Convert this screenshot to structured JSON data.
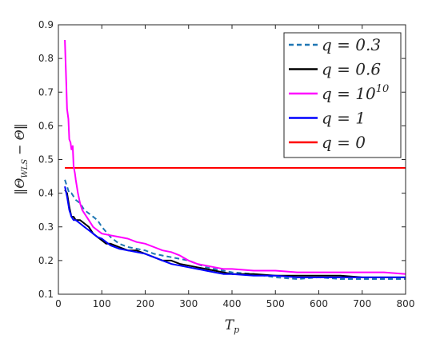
{
  "chart_data": {
    "type": "line",
    "title": "",
    "xlabel": "T_p",
    "ylabel": "||Θ_WLS − Θ||",
    "xlim": [
      0,
      800
    ],
    "ylim": [
      0.1,
      0.9
    ],
    "xticks": [
      "0",
      "100",
      "200",
      "300",
      "400",
      "500",
      "600",
      "700",
      "800"
    ],
    "yticks": [
      "0.1",
      "0.2",
      "0.3",
      "0.4",
      "0.5",
      "0.6",
      "0.7",
      "0.8",
      "0.9"
    ],
    "grid": false,
    "legend_position": "top-right",
    "series": [
      {
        "name": "q = 0.3",
        "color": "#1f77b4",
        "style": "dashed",
        "x": [
          15,
          20,
          25,
          30,
          40,
          50,
          60,
          70,
          80,
          90,
          100,
          120,
          140,
          160,
          180,
          200,
          220,
          240,
          260,
          280,
          300,
          320,
          340,
          360,
          380,
          400,
          450,
          500,
          550,
          600,
          650,
          700,
          750,
          800
        ],
        "y": [
          0.44,
          0.42,
          0.4,
          0.4,
          0.38,
          0.37,
          0.35,
          0.34,
          0.33,
          0.32,
          0.3,
          0.27,
          0.25,
          0.24,
          0.235,
          0.23,
          0.22,
          0.215,
          0.21,
          0.205,
          0.2,
          0.19,
          0.18,
          0.175,
          0.17,
          0.165,
          0.16,
          0.15,
          0.145,
          0.15,
          0.145,
          0.145,
          0.145,
          0.145
        ]
      },
      {
        "name": "q = 0.6",
        "color": "#000000",
        "style": "solid",
        "x": [
          15,
          20,
          25,
          30,
          35,
          40,
          50,
          60,
          70,
          80,
          90,
          100,
          110,
          120,
          140,
          160,
          180,
          200,
          220,
          240,
          260,
          280,
          300,
          320,
          340,
          360,
          380,
          400,
          450,
          500,
          550,
          600,
          650,
          700,
          750,
          800
        ],
        "y": [
          0.41,
          0.4,
          0.36,
          0.33,
          0.33,
          0.32,
          0.32,
          0.31,
          0.3,
          0.28,
          0.27,
          0.26,
          0.25,
          0.25,
          0.24,
          0.23,
          0.23,
          0.22,
          0.21,
          0.2,
          0.2,
          0.19,
          0.185,
          0.18,
          0.175,
          0.17,
          0.165,
          0.16,
          0.16,
          0.155,
          0.155,
          0.155,
          0.155,
          0.15,
          0.15,
          0.15
        ]
      },
      {
        "name": "q = 10^10",
        "color": "#ff00ff",
        "style": "solid",
        "x": [
          15,
          18,
          20,
          23,
          25,
          28,
          30,
          33,
          35,
          38,
          40,
          45,
          50,
          55,
          60,
          70,
          80,
          90,
          100,
          120,
          140,
          160,
          180,
          200,
          220,
          240,
          260,
          280,
          300,
          320,
          340,
          360,
          380,
          400,
          450,
          500,
          550,
          600,
          650,
          700,
          750,
          800
        ],
        "y": [
          0.855,
          0.73,
          0.65,
          0.62,
          0.56,
          0.55,
          0.53,
          0.54,
          0.48,
          0.46,
          0.44,
          0.4,
          0.37,
          0.35,
          0.34,
          0.32,
          0.3,
          0.29,
          0.28,
          0.275,
          0.27,
          0.265,
          0.255,
          0.25,
          0.24,
          0.23,
          0.225,
          0.215,
          0.2,
          0.19,
          0.185,
          0.18,
          0.175,
          0.175,
          0.17,
          0.17,
          0.165,
          0.165,
          0.165,
          0.165,
          0.165,
          0.16
        ]
      },
      {
        "name": "q = 1",
        "color": "#0000ff",
        "style": "solid",
        "x": [
          15,
          20,
          25,
          30,
          35,
          40,
          50,
          60,
          70,
          80,
          90,
          100,
          110,
          120,
          140,
          160,
          180,
          200,
          220,
          240,
          260,
          280,
          300,
          320,
          340,
          360,
          380,
          400,
          450,
          500,
          550,
          600,
          650,
          700,
          750,
          800
        ],
        "y": [
          0.42,
          0.39,
          0.35,
          0.33,
          0.32,
          0.32,
          0.31,
          0.3,
          0.29,
          0.28,
          0.27,
          0.265,
          0.255,
          0.245,
          0.235,
          0.23,
          0.225,
          0.22,
          0.21,
          0.2,
          0.19,
          0.185,
          0.18,
          0.175,
          0.17,
          0.165,
          0.16,
          0.16,
          0.155,
          0.155,
          0.15,
          0.15,
          0.15,
          0.15,
          0.15,
          0.15
        ]
      },
      {
        "name": "q = 0",
        "color": "#ff0000",
        "style": "solid",
        "x": [
          15,
          800
        ],
        "y": [
          0.475,
          0.475
        ]
      }
    ]
  }
}
